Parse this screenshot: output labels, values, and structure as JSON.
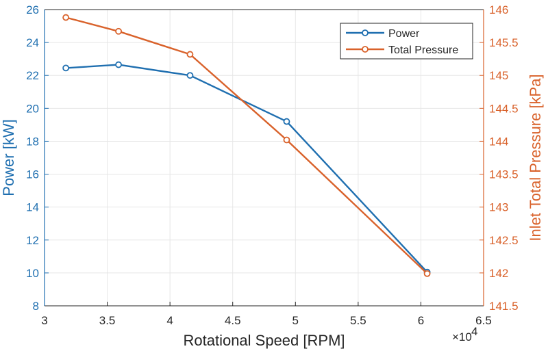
{
  "chart_data": {
    "type": "line",
    "xlabel": "Rotational Speed [RPM]",
    "x_exponent_label": "×10",
    "x_exponent_power": "4",
    "ylabel_left": "Power [kW]",
    "ylabel_right": "Inlet Total Pressure [kPa]",
    "xlim": [
      3,
      6.5
    ],
    "ylim_left": [
      8,
      26
    ],
    "ylim_right": [
      141.5,
      146
    ],
    "x_ticks": [
      "3",
      "3.5",
      "4",
      "4.5",
      "5",
      "5.5",
      "6",
      "6.5"
    ],
    "y_left_ticks": [
      "8",
      "10",
      "12",
      "14",
      "16",
      "18",
      "20",
      "22",
      "24",
      "26"
    ],
    "y_right_ticks": [
      "141.5",
      "142",
      "142.5",
      "143",
      "143.5",
      "144",
      "144.5",
      "145",
      "145.5",
      "146"
    ],
    "grid": true,
    "legend_position": "top-right",
    "series": [
      {
        "name": "Power",
        "axis": "left",
        "color": "#1f6fb0",
        "marker": "circle",
        "x": [
          3.17,
          3.59,
          4.16,
          4.93,
          6.05
        ],
        "values": [
          22.45,
          22.65,
          22.0,
          19.2,
          10.05
        ]
      },
      {
        "name": "Total Pressure",
        "axis": "right",
        "color": "#d9622b",
        "marker": "circle",
        "x": [
          3.17,
          3.59,
          4.16,
          4.93,
          6.05
        ],
        "values": [
          145.88,
          145.67,
          145.32,
          144.02,
          141.99
        ]
      }
    ],
    "colors": {
      "left_axis": "#1f6fb0",
      "right_axis": "#d9622b",
      "grid": "#e6e6e6",
      "axis": "#262626"
    }
  }
}
